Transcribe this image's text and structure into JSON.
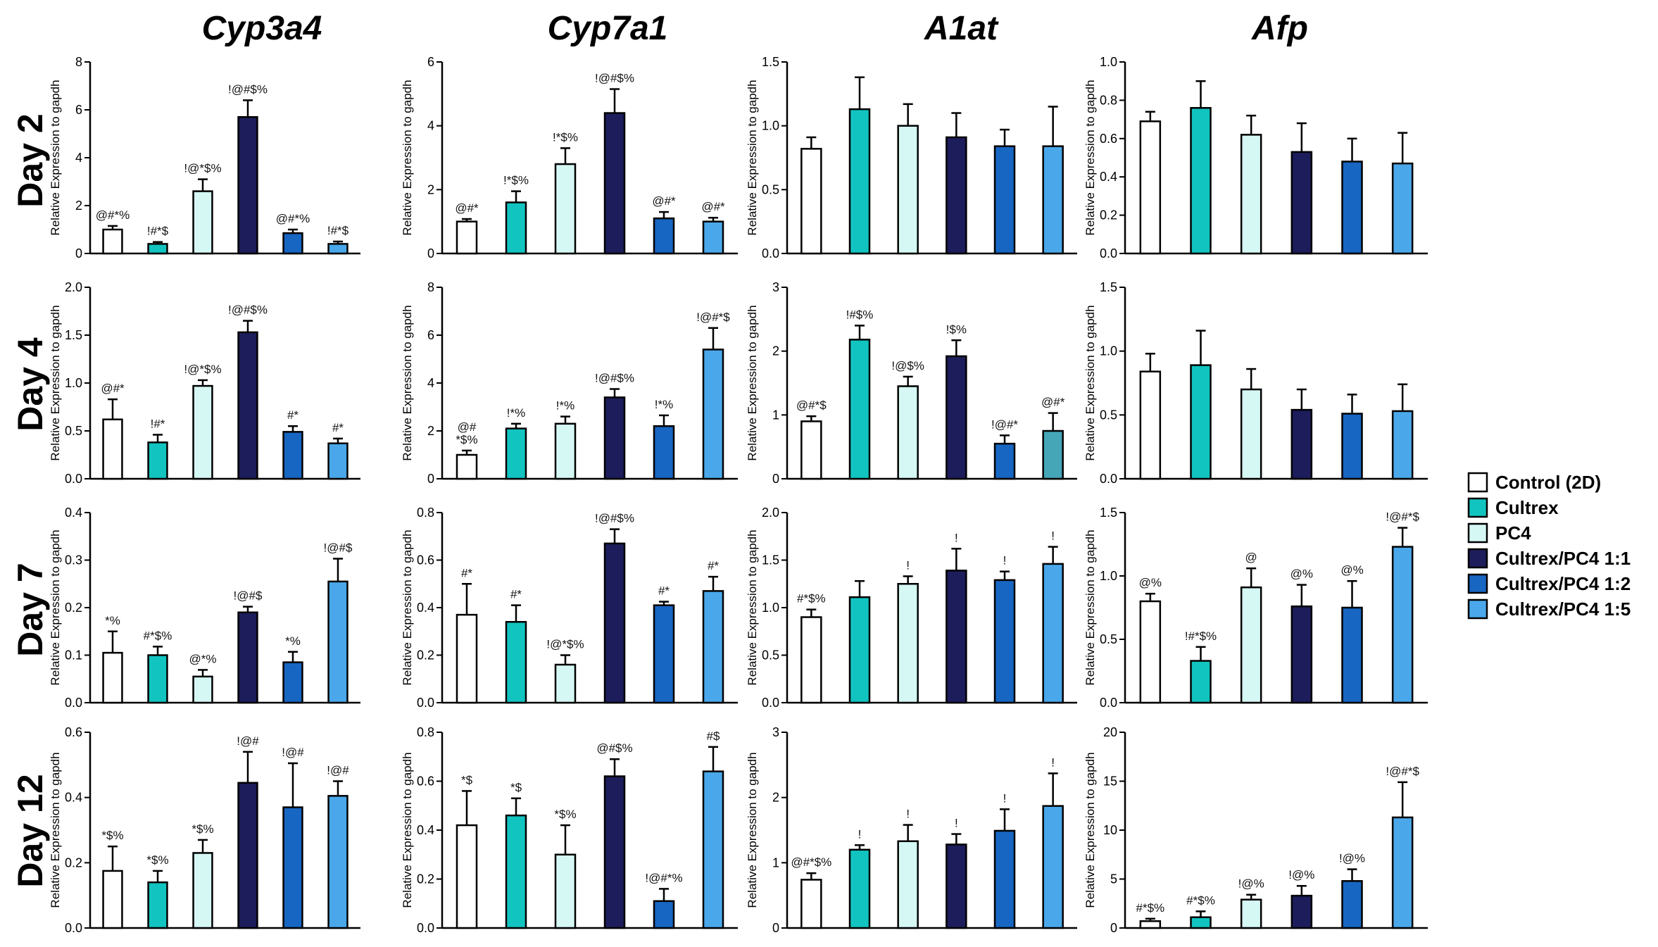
{
  "colors": {
    "Control (2D)": "#ffffff",
    "Cultrex": "#12c4c0",
    "PC4": "#d6f8f4",
    "Cultrex/PC4 1:1": "#1d1d5c",
    "Cultrex/PC4 1:2": "#1766c2",
    "Cultrex/PC4 1:5": "#4aa8ea",
    "A1at Day 4 1:5": "#45a6b8"
  },
  "legend": [
    "Control (2D)",
    "Cultrex",
    "PC4",
    "Cultrex/PC4 1:1",
    "Cultrex/PC4 1:2",
    "Cultrex/PC4 1:5"
  ],
  "genes": [
    "Cyp3a4",
    "Cyp7a1",
    "A1at",
    "Afp"
  ],
  "days": [
    "Day 2",
    "Day 4",
    "Day 7",
    "Day 12"
  ],
  "chart_data": [
    {
      "type": "bar",
      "gene": "Cyp3a4",
      "day": "Day 2",
      "ylabel": "Relative Expression to gapdh",
      "ylim": [
        0,
        8
      ],
      "yticks": [
        "0",
        "2",
        "4",
        "6",
        "8"
      ],
      "categories": [
        "Control (2D)",
        "Cultrex",
        "PC4",
        "Cultrex/PC4 1:1",
        "Cultrex/PC4 1:2",
        "Cultrex/PC4 1:5"
      ],
      "values": [
        1.0,
        0.4,
        2.6,
        5.7,
        0.85,
        0.4
      ],
      "errors": [
        0.15,
        0.08,
        0.5,
        0.7,
        0.15,
        0.1
      ],
      "annotations": [
        "@#*%",
        "!#*$",
        "!@*$%",
        "!@#$%",
        "@#*%",
        "!#*$"
      ]
    },
    {
      "type": "bar",
      "gene": "Cyp7a1",
      "day": "Day 2",
      "ylabel": "Relative Expression to gapdh",
      "ylim": [
        0,
        6
      ],
      "yticks": [
        "0",
        "2",
        "4",
        "6"
      ],
      "categories": [
        "Control (2D)",
        "Cultrex",
        "PC4",
        "Cultrex/PC4 1:1",
        "Cultrex/PC4 1:2",
        "Cultrex/PC4 1:5"
      ],
      "values": [
        1.0,
        1.6,
        2.8,
        4.4,
        1.1,
        1.0
      ],
      "errors": [
        0.08,
        0.35,
        0.5,
        0.75,
        0.2,
        0.12
      ],
      "annotations": [
        "@#*",
        "!*$%",
        "!*$%",
        "!@#$%",
        "@#*",
        "@#*"
      ]
    },
    {
      "type": "bar",
      "gene": "A1at",
      "day": "Day 2",
      "ylabel": "Relative Expression to gapdh",
      "ylim": [
        0,
        1.5
      ],
      "yticks": [
        "0.0",
        "0.5",
        "1.0",
        "1.5"
      ],
      "categories": [
        "Control (2D)",
        "Cultrex",
        "PC4",
        "Cultrex/PC4 1:1",
        "Cultrex/PC4 1:2",
        "Cultrex/PC4 1:5"
      ],
      "values": [
        0.82,
        1.13,
        1.0,
        0.91,
        0.84,
        0.84
      ],
      "errors": [
        0.09,
        0.25,
        0.17,
        0.19,
        0.13,
        0.31
      ],
      "annotations": [
        "",
        "",
        "",
        "",
        "",
        ""
      ]
    },
    {
      "type": "bar",
      "gene": "Afp",
      "day": "Day 2",
      "ylabel": "Relative Expression to gapdh",
      "ylim": [
        0,
        1.0
      ],
      "yticks": [
        "0.0",
        "0.2",
        "0.4",
        "0.6",
        "0.8",
        "1.0"
      ],
      "categories": [
        "Control (2D)",
        "Cultrex",
        "PC4",
        "Cultrex/PC4 1:1",
        "Cultrex/PC4 1:2",
        "Cultrex/PC4 1:5"
      ],
      "values": [
        0.69,
        0.76,
        0.62,
        0.53,
        0.48,
        0.47
      ],
      "errors": [
        0.05,
        0.14,
        0.1,
        0.15,
        0.12,
        0.16
      ],
      "annotations": [
        "",
        "",
        "",
        "",
        "",
        ""
      ]
    },
    {
      "type": "bar",
      "gene": "Cyp3a4",
      "day": "Day 4",
      "ylabel": "Relative Expression to gapdh",
      "ylim": [
        0,
        2.0
      ],
      "yticks": [
        "0.0",
        "0.5",
        "1.0",
        "1.5",
        "2.0"
      ],
      "categories": [
        "Control (2D)",
        "Cultrex",
        "PC4",
        "Cultrex/PC4 1:1",
        "Cultrex/PC4 1:2",
        "Cultrex/PC4 1:5"
      ],
      "values": [
        0.62,
        0.38,
        0.97,
        1.53,
        0.49,
        0.37
      ],
      "errors": [
        0.21,
        0.08,
        0.06,
        0.12,
        0.06,
        0.05
      ],
      "annotations": [
        "@#*",
        "!#*",
        "!@*$%",
        "!@#$%",
        "#*",
        "#*"
      ]
    },
    {
      "type": "bar",
      "gene": "Cyp7a1",
      "day": "Day 4",
      "ylabel": "Relative Expression to gapdh",
      "ylim": [
        0,
        8
      ],
      "yticks": [
        "0",
        "2",
        "4",
        "6",
        "8"
      ],
      "categories": [
        "Control (2D)",
        "Cultrex",
        "PC4",
        "Cultrex/PC4 1:1",
        "Cultrex/PC4 1:2",
        "Cultrex/PC4 1:5"
      ],
      "values": [
        1.0,
        2.1,
        2.3,
        3.4,
        2.2,
        5.4
      ],
      "errors": [
        0.18,
        0.2,
        0.3,
        0.35,
        0.45,
        0.9
      ],
      "annotations": [
        "@#\n*$%",
        "!*%",
        "!*%",
        "!@#$%",
        "!*%",
        "!@#*$"
      ]
    },
    {
      "type": "bar",
      "gene": "A1at",
      "day": "Day 4",
      "ylabel": "Relative Expression to gapdh",
      "ylim": [
        0,
        3
      ],
      "yticks": [
        "0",
        "1",
        "2",
        "3"
      ],
      "categories": [
        "Control (2D)",
        "Cultrex",
        "PC4",
        "Cultrex/PC4 1:1",
        "Cultrex/PC4 1:2",
        "Cultrex/PC4 1:5"
      ],
      "values": [
        0.9,
        2.18,
        1.45,
        1.92,
        0.55,
        0.75
      ],
      "errors": [
        0.08,
        0.22,
        0.15,
        0.25,
        0.13,
        0.28
      ],
      "annotations": [
        "@#*$",
        "!#$%",
        "!@$%",
        "!$%",
        "!@#*",
        "@#*"
      ]
    },
    {
      "type": "bar",
      "gene": "Afp",
      "day": "Day 4",
      "ylabel": "Relative Expression to gapdh",
      "ylim": [
        0,
        1.5
      ],
      "yticks": [
        "0.0",
        "0.5",
        "1.0",
        "1.5"
      ],
      "categories": [
        "Control (2D)",
        "Cultrex",
        "PC4",
        "Cultrex/PC4 1:1",
        "Cultrex/PC4 1:2",
        "Cultrex/PC4 1:5"
      ],
      "values": [
        0.84,
        0.89,
        0.7,
        0.54,
        0.51,
        0.53
      ],
      "errors": [
        0.14,
        0.27,
        0.16,
        0.16,
        0.15,
        0.21
      ],
      "annotations": [
        "",
        "",
        "",
        "",
        "",
        ""
      ]
    },
    {
      "type": "bar",
      "gene": "Cyp3a4",
      "day": "Day 7",
      "ylabel": "Relative Expression to gapdh",
      "ylim": [
        0,
        0.4
      ],
      "yticks": [
        "0.0",
        "0.1",
        "0.2",
        "0.3",
        "0.4"
      ],
      "categories": [
        "Control (2D)",
        "Cultrex",
        "PC4",
        "Cultrex/PC4 1:1",
        "Cultrex/PC4 1:2",
        "Cultrex/PC4 1:5"
      ],
      "values": [
        0.105,
        0.1,
        0.055,
        0.19,
        0.085,
        0.255
      ],
      "errors": [
        0.045,
        0.018,
        0.014,
        0.012,
        0.022,
        0.048
      ],
      "annotations": [
        "*%",
        "#*$%",
        "@*%",
        "!@#$",
        "*%",
        "!@#$"
      ]
    },
    {
      "type": "bar",
      "gene": "Cyp7a1",
      "day": "Day 7",
      "ylabel": "Relative Expression to gapdh",
      "ylim": [
        0,
        0.8
      ],
      "yticks": [
        "0.0",
        "0.2",
        "0.4",
        "0.6",
        "0.8"
      ],
      "categories": [
        "Control (2D)",
        "Cultrex",
        "PC4",
        "Cultrex/PC4 1:1",
        "Cultrex/PC4 1:2",
        "Cultrex/PC4 1:5"
      ],
      "values": [
        0.37,
        0.34,
        0.16,
        0.67,
        0.41,
        0.47
      ],
      "errors": [
        0.13,
        0.07,
        0.04,
        0.06,
        0.015,
        0.06
      ],
      "annotations": [
        "#*",
        "#*",
        "!@*$%",
        "!@#$%",
        "#*",
        "#*"
      ]
    },
    {
      "type": "bar",
      "gene": "A1at",
      "day": "Day 7",
      "ylabel": "Relative Expression to gapdh",
      "ylim": [
        0,
        2.0
      ],
      "yticks": [
        "0.0",
        "0.5",
        "1.0",
        "1.5",
        "2.0"
      ],
      "categories": [
        "Control (2D)",
        "Cultrex",
        "PC4",
        "Cultrex/PC4 1:1",
        "Cultrex/PC4 1:2",
        "Cultrex/PC4 1:5"
      ],
      "values": [
        0.9,
        1.11,
        1.25,
        1.39,
        1.29,
        1.46
      ],
      "errors": [
        0.08,
        0.17,
        0.08,
        0.23,
        0.09,
        0.18
      ],
      "annotations": [
        "#*$%",
        "",
        "!",
        "!",
        "!",
        "!"
      ]
    },
    {
      "type": "bar",
      "gene": "Afp",
      "day": "Day 7",
      "ylabel": "Relative Expression to gapdh",
      "ylim": [
        0,
        1.5
      ],
      "yticks": [
        "0.0",
        "0.5",
        "1.0",
        "1.5"
      ],
      "categories": [
        "Control (2D)",
        "Cultrex",
        "PC4",
        "Cultrex/PC4 1:1",
        "Cultrex/PC4 1:2",
        "Cultrex/PC4 1:5"
      ],
      "values": [
        0.8,
        0.33,
        0.91,
        0.76,
        0.75,
        1.23
      ],
      "errors": [
        0.06,
        0.11,
        0.15,
        0.17,
        0.21,
        0.15
      ],
      "annotations": [
        "@%",
        "!#*$%",
        "@",
        "@%",
        "@%",
        "!@#*$"
      ]
    },
    {
      "type": "bar",
      "gene": "Cyp3a4",
      "day": "Day 12",
      "ylabel": "Relative Expression to gapdh",
      "ylim": [
        0,
        0.6
      ],
      "yticks": [
        "0.0",
        "0.2",
        "0.4",
        "0.6"
      ],
      "categories": [
        "Control (2D)",
        "Cultrex",
        "PC4",
        "Cultrex/PC4 1:1",
        "Cultrex/PC4 1:2",
        "Cultrex/PC4 1:5"
      ],
      "values": [
        0.175,
        0.14,
        0.23,
        0.445,
        0.37,
        0.405
      ],
      "errors": [
        0.075,
        0.035,
        0.04,
        0.095,
        0.135,
        0.045
      ],
      "annotations": [
        "*$%",
        "*$%",
        "*$%",
        "!@#",
        "!@#",
        "!@#"
      ]
    },
    {
      "type": "bar",
      "gene": "Cyp7a1",
      "day": "Day 12",
      "ylabel": "Relative Expression to gapdh",
      "ylim": [
        0,
        0.8
      ],
      "yticks": [
        "0.0",
        "0.2",
        "0.4",
        "0.6",
        "0.8"
      ],
      "categories": [
        "Control (2D)",
        "Cultrex",
        "PC4",
        "Cultrex/PC4 1:1",
        "Cultrex/PC4 1:2",
        "Cultrex/PC4 1:5"
      ],
      "values": [
        0.42,
        0.46,
        0.3,
        0.62,
        0.11,
        0.64
      ],
      "errors": [
        0.14,
        0.07,
        0.12,
        0.07,
        0.05,
        0.1
      ],
      "annotations": [
        "*$",
        "*$",
        "*$%",
        "@#$%",
        "!@#*%",
        "#$"
      ]
    },
    {
      "type": "bar",
      "gene": "A1at",
      "day": "Day 12",
      "ylabel": "Relative Expression to gapdh",
      "ylim": [
        0,
        3
      ],
      "yticks": [
        "0",
        "1",
        "2",
        "3"
      ],
      "categories": [
        "Control (2D)",
        "Cultrex",
        "PC4",
        "Cultrex/PC4 1:1",
        "Cultrex/PC4 1:2",
        "Cultrex/PC4 1:5"
      ],
      "values": [
        0.74,
        1.2,
        1.33,
        1.28,
        1.49,
        1.87
      ],
      "errors": [
        0.1,
        0.07,
        0.25,
        0.16,
        0.33,
        0.5
      ],
      "annotations": [
        "@#*$%",
        "!",
        "!",
        "!",
        "!",
        "!"
      ]
    },
    {
      "type": "bar",
      "gene": "Afp",
      "day": "Day 12",
      "ylabel": "Relative Expression to gapdh",
      "ylim": [
        0,
        20
      ],
      "yticks": [
        "0",
        "5",
        "10",
        "15",
        "20"
      ],
      "categories": [
        "Control (2D)",
        "Cultrex",
        "PC4",
        "Cultrex/PC4 1:1",
        "Cultrex/PC4 1:2",
        "Cultrex/PC4 1:5"
      ],
      "values": [
        0.7,
        1.1,
        2.9,
        3.3,
        4.8,
        11.3
      ],
      "errors": [
        0.25,
        0.6,
        0.5,
        1.0,
        1.2,
        3.6
      ],
      "annotations": [
        "#*$%",
        "#*$%",
        "!@%",
        "!@%",
        "!@%",
        "!@#*$"
      ]
    }
  ]
}
